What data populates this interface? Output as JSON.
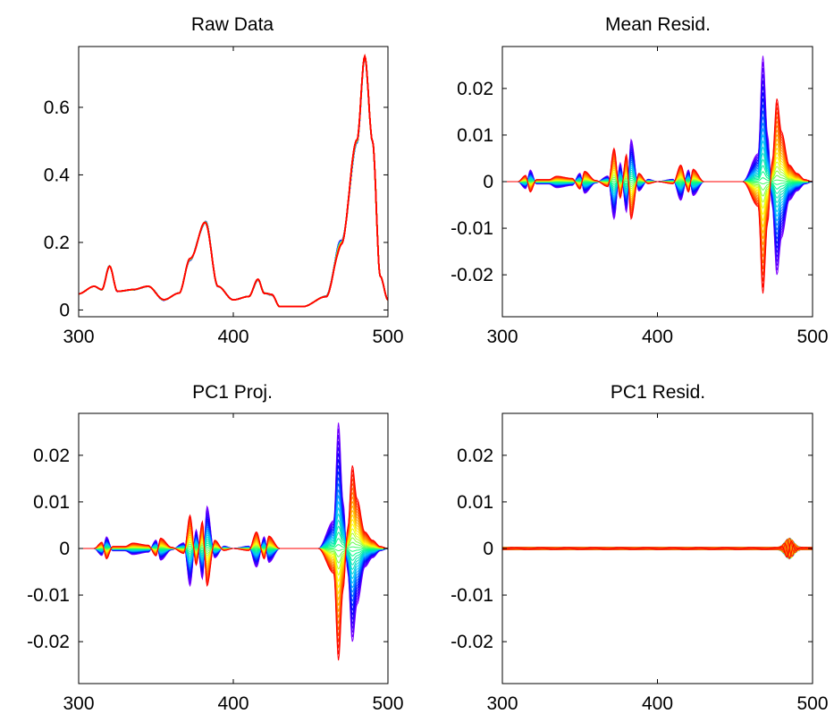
{
  "chart_data": [
    {
      "type": "line",
      "title": "Raw Data",
      "xlim": [
        300,
        500
      ],
      "ylim": [
        -0.02,
        0.78
      ],
      "xticks": [
        300,
        400,
        500
      ],
      "xtick_labels": [
        "300",
        "400",
        "500"
      ],
      "yticks": [
        0,
        0.2,
        0.4,
        0.6
      ],
      "ytick_labels": [
        "0",
        "0.2",
        "0.4",
        "0.6"
      ],
      "n_series": 40,
      "colormap": [
        "#7f00ff",
        "#0000ff",
        "#00bfff",
        "#00ff80",
        "#ffff00",
        "#ff8000",
        "#ff0000"
      ],
      "components": {
        "baseline": [
          [
            300,
            0.048
          ],
          [
            310,
            0.07
          ],
          [
            315,
            0.06
          ],
          [
            320,
            0.13
          ],
          [
            325,
            0.055
          ],
          [
            335,
            0.06
          ],
          [
            345,
            0.07
          ],
          [
            355,
            0.03
          ],
          [
            365,
            0.05
          ],
          [
            372,
            0.15
          ],
          [
            382,
            0.26
          ],
          [
            390,
            0.07
          ],
          [
            400,
            0.03
          ],
          [
            410,
            0.04
          ],
          [
            416,
            0.09
          ],
          [
            420,
            0.05
          ],
          [
            425,
            0.045
          ],
          [
            430,
            0.01
          ],
          [
            445,
            0.01
          ],
          [
            460,
            0.04
          ],
          [
            470,
            0.2
          ],
          [
            480,
            0.5
          ],
          [
            485,
            0.75
          ],
          [
            490,
            0.5
          ],
          [
            495,
            0.1
          ],
          [
            500,
            0.03
          ]
        ],
        "pc1_shape": [
          [
            300,
            0
          ],
          [
            310,
            0
          ],
          [
            315,
            0.0015
          ],
          [
            318,
            -0.0025
          ],
          [
            322,
            0.0005
          ],
          [
            330,
            0.0005
          ],
          [
            335,
            0.0013
          ],
          [
            345,
            0.0008
          ],
          [
            350,
            -0.0018
          ],
          [
            353,
            0.0025
          ],
          [
            360,
            0.0003
          ],
          [
            368,
            -0.0012
          ],
          [
            372,
            0.008
          ],
          [
            376,
            -0.004
          ],
          [
            380,
            0.0065
          ],
          [
            383,
            -0.009
          ],
          [
            388,
            0.002
          ],
          [
            394,
            -0.0005
          ],
          [
            400,
            0
          ],
          [
            410,
            -0.0005
          ],
          [
            415,
            0.004
          ],
          [
            420,
            -0.0025
          ],
          [
            423,
            0.003
          ],
          [
            430,
            0
          ],
          [
            440,
            0
          ],
          [
            455,
            0
          ],
          [
            465,
            -0.006
          ],
          [
            468,
            -0.027
          ],
          [
            471,
            -0.01
          ],
          [
            474,
            0.005
          ],
          [
            477,
            0.02
          ],
          [
            480,
            0.012
          ],
          [
            485,
            0.004
          ],
          [
            490,
            0.002
          ],
          [
            495,
            0.0005
          ],
          [
            500,
            0
          ]
        ],
        "amplitude_range": [
          -1,
          0.89
        ],
        "pc1_resid_amplitude": 0.0008
      }
    },
    {
      "type": "line",
      "title": "Mean Resid.",
      "xlim": [
        300,
        500
      ],
      "ylim": [
        -0.029,
        0.029
      ],
      "xticks": [
        300,
        400,
        500
      ],
      "xtick_labels": [
        "300",
        "400",
        "500"
      ],
      "yticks": [
        -0.02,
        -0.01,
        0,
        0.01,
        0.02
      ],
      "ytick_labels": [
        "-0.02",
        "-0.01",
        "0",
        "0.01",
        "0.02"
      ],
      "n_series": 40
    },
    {
      "type": "line",
      "title": "PC1 Proj.",
      "xlim": [
        300,
        500
      ],
      "ylim": [
        -0.029,
        0.029
      ],
      "xticks": [
        300,
        400,
        500
      ],
      "xtick_labels": [
        "300",
        "400",
        "500"
      ],
      "yticks": [
        -0.02,
        -0.01,
        0,
        0.01,
        0.02
      ],
      "ytick_labels": [
        "-0.02",
        "-0.01",
        "0",
        "0.01",
        "0.02"
      ],
      "n_series": 40
    },
    {
      "type": "line",
      "title": "PC1 Resid.",
      "xlim": [
        300,
        500
      ],
      "ylim": [
        -0.029,
        0.029
      ],
      "xticks": [
        300,
        400,
        500
      ],
      "xtick_labels": [
        "300",
        "400",
        "500"
      ],
      "yticks": [
        -0.02,
        -0.01,
        0,
        0.01,
        0.02
      ],
      "ytick_labels": [
        "-0.02",
        "-0.01",
        "0",
        "0.01",
        "0.02"
      ],
      "n_series": 40
    }
  ]
}
